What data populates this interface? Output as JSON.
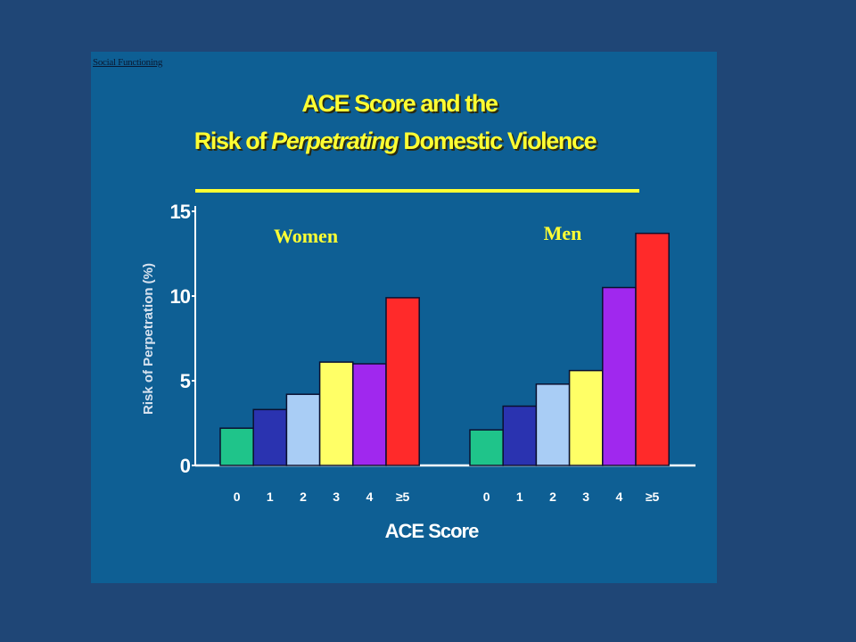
{
  "slide": {
    "section_tag": "Social Functioning",
    "title_line1": "ACE Score and the",
    "title_line2_pre": "Risk of ",
    "title_line2_em": "Perpetrating",
    "title_line2_post": " Domestic Violence"
  },
  "colors": {
    "background": "#1f4676",
    "panel": "#0e5f94",
    "title": "#ffff33",
    "axis": "#ffffff",
    "bars": [
      "#1fc48a",
      "#2a33b0",
      "#a9cdf5",
      "#ffff66",
      "#a028ee",
      "#ff2a2a"
    ]
  },
  "chart_data": {
    "type": "bar",
    "ylabel": "Risk of Perpetration (%)",
    "xlabel": "ACE Score",
    "ylim": [
      0,
      15
    ],
    "yticks": [
      "0",
      "5",
      "10",
      "15"
    ],
    "categories": [
      "0",
      "1",
      "2",
      "3",
      "4",
      "≥5"
    ],
    "groups": [
      {
        "name": "Women",
        "values": [
          2.2,
          3.3,
          4.2,
          6.1,
          6.0,
          9.9
        ]
      },
      {
        "name": "Men",
        "values": [
          2.1,
          3.5,
          4.8,
          5.6,
          10.5,
          13.7
        ]
      }
    ]
  }
}
